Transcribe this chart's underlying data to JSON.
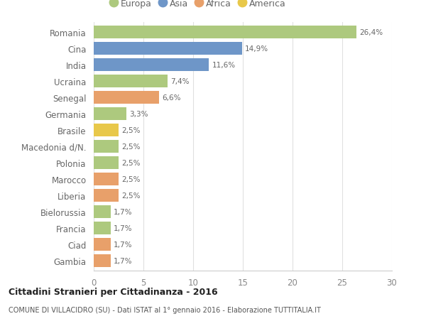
{
  "countries": [
    "Romania",
    "Cina",
    "India",
    "Ucraina",
    "Senegal",
    "Germania",
    "Brasile",
    "Macedonia d/N.",
    "Polonia",
    "Marocco",
    "Liberia",
    "Bielorussia",
    "Francia",
    "Ciad",
    "Gambia"
  ],
  "values": [
    26.4,
    14.9,
    11.6,
    7.4,
    6.6,
    3.3,
    2.5,
    2.5,
    2.5,
    2.5,
    2.5,
    1.7,
    1.7,
    1.7,
    1.7
  ],
  "labels": [
    "26,4%",
    "14,9%",
    "11,6%",
    "7,4%",
    "6,6%",
    "3,3%",
    "2,5%",
    "2,5%",
    "2,5%",
    "2,5%",
    "2,5%",
    "1,7%",
    "1,7%",
    "1,7%",
    "1,7%"
  ],
  "colors": [
    "#adc97e",
    "#6e96c8",
    "#6e96c8",
    "#adc97e",
    "#e8a06a",
    "#adc97e",
    "#e8c84a",
    "#adc97e",
    "#adc97e",
    "#e8a06a",
    "#e8a06a",
    "#adc97e",
    "#adc97e",
    "#e8a06a",
    "#e8a06a"
  ],
  "legend_labels": [
    "Europa",
    "Asia",
    "Africa",
    "America"
  ],
  "legend_colors": [
    "#adc97e",
    "#6e96c8",
    "#e8a06a",
    "#e8c84a"
  ],
  "title_bold": "Cittadini Stranieri per Cittadinanza - 2016",
  "subtitle": "COMUNE DI VILLACIDRO (SU) - Dati ISTAT al 1° gennaio 2016 - Elaborazione TUTTITALIA.IT",
  "xlim": [
    0,
    30
  ],
  "xticks": [
    0,
    5,
    10,
    15,
    20,
    25,
    30
  ],
  "bg_color": "#ffffff",
  "grid_color": "#e0e0e0",
  "bar_height": 0.75
}
